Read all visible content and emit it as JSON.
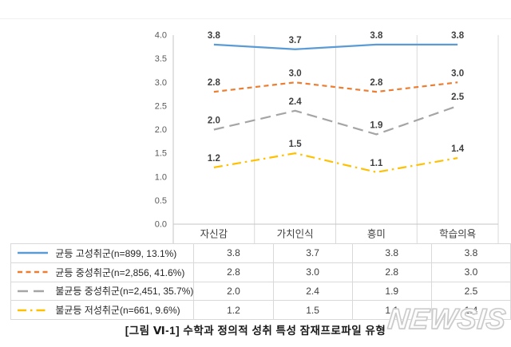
{
  "chart_data": {
    "type": "line",
    "title": "",
    "categories": [
      "자신감",
      "가치인식",
      "흥미",
      "학습의욕"
    ],
    "series": [
      {
        "name": "균등 고성취군(n=899, 13.1%)",
        "values": [
          3.8,
          3.7,
          3.8,
          3.8
        ],
        "color": "#5B9BD5",
        "dash": "solid"
      },
      {
        "name": "균등 중성취군(n=2,856, 41.6%)",
        "values": [
          2.8,
          3.0,
          2.8,
          3.0
        ],
        "color": "#ED7D31",
        "dash": "6 4.5"
      },
      {
        "name": "불균등 중성취군(n=2,451, 35.7%)",
        "values": [
          2.0,
          2.4,
          1.9,
          2.5
        ],
        "color": "#A5A5A5",
        "dash": "13 7"
      },
      {
        "name": "불균등 저성취군(n=661, 9.6%)",
        "values": [
          1.2,
          1.5,
          1.1,
          1.4
        ],
        "color": "#FFC000",
        "dash": "11 5 2.5 5"
      }
    ],
    "xlabel": "",
    "ylabel": "",
    "ylim": [
      0.0,
      4.0
    ],
    "ytick_step": 0.5,
    "yticks": [
      "0.0",
      "0.5",
      "1.0",
      "1.5",
      "2.0",
      "2.5",
      "3.0",
      "3.5",
      "4.0"
    ],
    "grid": "vertical-only",
    "legend_position": "attached-data-table-left-column",
    "data_labels": true
  },
  "table": {
    "rows": [
      {
        "label": "균등 고성취군(n=899, 13.1%)",
        "values": [
          "3.8",
          "3.7",
          "3.8",
          "3.8"
        ]
      },
      {
        "label": "균등 중성취군(n=2,856, 41.6%)",
        "values": [
          "2.8",
          "3.0",
          "2.8",
          "3.0"
        ]
      },
      {
        "label": "불균등 중성취군(n=2,451, 35.7%)",
        "values": [
          "2.0",
          "2.4",
          "1.9",
          "2.5"
        ]
      },
      {
        "label": "불균등 저성취군(n=661, 9.6%)",
        "values": [
          "1.2",
          "1.5",
          "1.1",
          "1.4"
        ]
      }
    ]
  },
  "caption": "[그림 Ⅵ-1] 수학과 정의적 성취 특성 잠재프로파일 유형",
  "watermark": "NEWSIS",
  "colors": {
    "grid": "#D9D9D9",
    "axis": "#C6C6C6",
    "tick_text": "#595959",
    "label_text": "#3F3F3F",
    "table_border": "#D9D9D9"
  }
}
